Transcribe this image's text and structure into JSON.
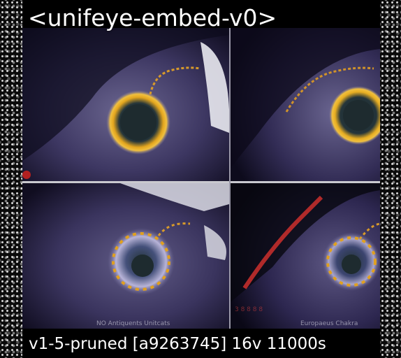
{
  "header": {
    "title": "<unifeye-embed-v0>"
  },
  "footer": {
    "caption": "v1-5-pruned [a9263745]  16v 11000s"
  },
  "panels": {
    "bottom_left": {
      "watermark": "NO Antiquents Unitcats"
    },
    "bottom_right": {
      "watermark_left": "3 8 8 8 8",
      "watermark_right": "Europaeus Chakra"
    }
  },
  "colors": {
    "background": "#000000",
    "iris_ring": "#e0a020",
    "pupil": "#1f2a2e",
    "skin": "#2a2546",
    "caption_text": "#ffffff"
  }
}
